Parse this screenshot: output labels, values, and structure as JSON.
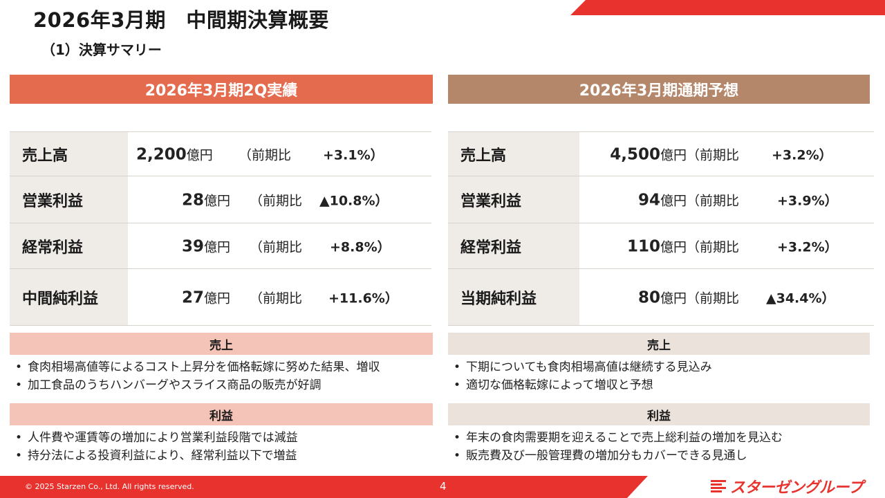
{
  "header": {
    "title": "2026年3月期　中間期決算概要",
    "subtitle": "（1）決算サマリー"
  },
  "left": {
    "heading": "2026年3月期2Q実績",
    "rows": [
      {
        "label": "売上高",
        "value": "2,200",
        "unit": "億円",
        "cmp_label": "（前期比",
        "cmp_value": "+3.1%）"
      },
      {
        "label": "営業利益",
        "value": "28",
        "unit": "億円",
        "cmp_label": "（前期比",
        "cmp_value": "▲10.8%）"
      },
      {
        "label": "経常利益",
        "value": "39",
        "unit": "億円",
        "cmp_label": "（前期比",
        "cmp_value": "+8.8%）"
      },
      {
        "label": "中間純利益",
        "value": "27",
        "unit": "億円",
        "cmp_label": "（前期比",
        "cmp_value": "+11.6%）"
      }
    ],
    "sales_heading": "売上",
    "sales_bullets": [
      "食肉相場高値等によるコスト上昇分を価格転嫁に努めた結果、増収",
      "加工食品のうちハンバーグやスライス商品の販売が好調"
    ],
    "profit_heading": "利益",
    "profit_bullets": [
      "人件費や運賃等の増加により営業利益段階では減益",
      "持分法による投資利益により、経常利益以下で増益"
    ]
  },
  "right": {
    "heading": "2026年3月期通期予想",
    "rows": [
      {
        "label": "売上高",
        "value": "4,500",
        "unit": "億円",
        "cmp_label": "（前期比",
        "cmp_value": "+3.2%）"
      },
      {
        "label": "営業利益",
        "value": "94",
        "unit": "億円",
        "cmp_label": "（前期比",
        "cmp_value": "+3.9%）"
      },
      {
        "label": "経常利益",
        "value": "110",
        "unit": "億円",
        "cmp_label": "（前期比",
        "cmp_value": "+3.2%）"
      },
      {
        "label": "当期純利益",
        "value": "80",
        "unit": "億円",
        "cmp_label": "（前期比",
        "cmp_value": "▲34.4%）"
      }
    ],
    "sales_heading": "売上",
    "sales_bullets": [
      "下期についても食肉相場高値は継続する見込み",
      "適切な価格転嫁によって増収と予想"
    ],
    "profit_heading": "利益",
    "profit_bullets": [
      "年末の食肉需要期を迎えることで売上総利益の増加を見込む",
      "販売費及び一般管理費の増加分もカバーできる見通し"
    ]
  },
  "footer": {
    "copyright": "© 2025 Starzen Co., Ltd. All rights reserved.",
    "page_number": "4",
    "logo_text": "スターゼングループ"
  },
  "colors": {
    "accent_red": "#e8322e",
    "left_header": "#e56b4f",
    "right_header": "#b4876b",
    "left_section": "#f4c4b9",
    "right_section": "#ece2dc",
    "label_bg": "#efebe7"
  }
}
